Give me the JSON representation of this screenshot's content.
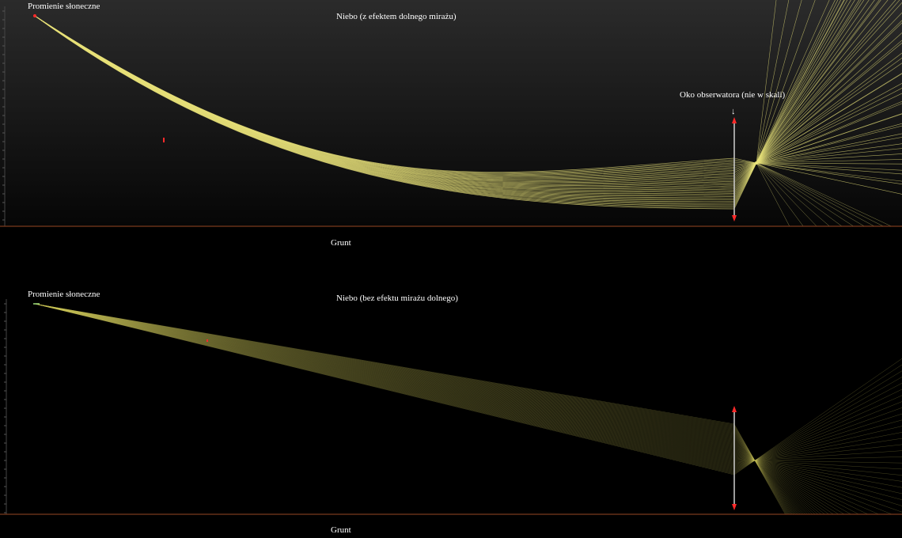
{
  "panels": [
    {
      "id": "with-mirage",
      "sun_label": "Promienie słoneczne",
      "sky_label": "Niebo (z efektem dolnego mirażu)",
      "ground_label": "Grunt",
      "observer_label": "Oko obserwatora (nie w skali)",
      "observer_arrow": "↓",
      "ray_color": "#e8e27a",
      "ground_color": "#7a3a1c",
      "marker_color": "#ff2a2a"
    },
    {
      "id": "without-mirage",
      "sun_label": "Promienie słoneczne",
      "sky_label": "Niebo (bez efektu mirażu dolnego)",
      "ground_label": "Grunt",
      "ray_color": "#c9c25a",
      "ground_color": "#7a3a1c",
      "marker_color": "#ff2a2a"
    }
  ]
}
